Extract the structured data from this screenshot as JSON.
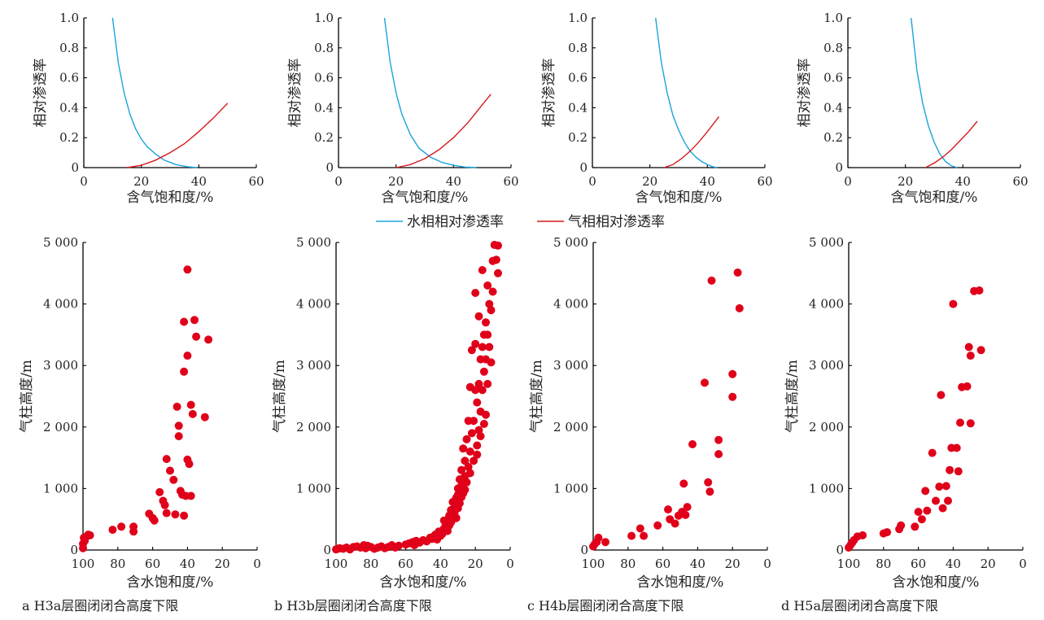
{
  "legend": {
    "water": "水相相对渗透率",
    "gas": "气相相对渗透率"
  },
  "colors": {
    "water": "#1aa3dd",
    "gas": "#d7191c",
    "points": "#e0001a"
  },
  "chart_data": [
    {
      "type": "line",
      "panel": "a-top",
      "xlabel": "含气饱和度/%",
      "ylabel": "相对渗透率",
      "xlim": [
        0,
        60
      ],
      "ylim": [
        0,
        1.0
      ],
      "xticks": [
        "0",
        "20",
        "40",
        "60"
      ],
      "yticks": [
        "0",
        "0.2",
        "0.4",
        "0.6",
        "0.8",
        "1.0"
      ],
      "series": [
        {
          "name": "水相相对渗透率",
          "x": [
            10,
            12,
            14,
            16,
            18,
            20,
            22,
            25,
            28,
            32,
            36,
            38,
            39.5
          ],
          "y": [
            1.0,
            0.7,
            0.5,
            0.36,
            0.26,
            0.19,
            0.14,
            0.09,
            0.05,
            0.02,
            0.006,
            0.002,
            0.0
          ]
        },
        {
          "name": "气相相对渗透率",
          "x": [
            15,
            20,
            25,
            30,
            35,
            40,
            45,
            50
          ],
          "y": [
            0.0,
            0.015,
            0.05,
            0.1,
            0.16,
            0.24,
            0.33,
            0.43
          ]
        }
      ]
    },
    {
      "type": "line",
      "panel": "b-top",
      "xlabel": "含气饱和度/%",
      "ylabel": "相对渗透率",
      "xlim": [
        0,
        60
      ],
      "ylim": [
        0,
        1.0
      ],
      "xticks": [
        "0",
        "20",
        "40",
        "60"
      ],
      "yticks": [
        "0",
        "0.2",
        "0.4",
        "0.6",
        "0.8",
        "1.0"
      ],
      "series": [
        {
          "name": "水相相对渗透率",
          "x": [
            16,
            18,
            20,
            22,
            25,
            28,
            32,
            36,
            40,
            44,
            48
          ],
          "y": [
            1.0,
            0.7,
            0.5,
            0.36,
            0.22,
            0.13,
            0.07,
            0.035,
            0.015,
            0.004,
            0.0
          ]
        },
        {
          "name": "气相相对渗透率",
          "x": [
            20,
            25,
            30,
            35,
            40,
            45,
            50,
            53
          ],
          "y": [
            0.0,
            0.02,
            0.06,
            0.12,
            0.2,
            0.3,
            0.42,
            0.49
          ]
        }
      ]
    },
    {
      "type": "line",
      "panel": "c-top",
      "xlabel": "含气饱和度/%",
      "ylabel": "相对渗透率",
      "xlim": [
        0,
        60
      ],
      "ylim": [
        0,
        1.0
      ],
      "xticks": [
        "0",
        "20",
        "40",
        "60"
      ],
      "yticks": [
        "0",
        "0.2",
        "0.4",
        "0.6",
        "0.8",
        "1.0"
      ],
      "series": [
        {
          "name": "水相相对渗透率",
          "x": [
            22,
            24,
            26,
            28,
            30,
            32,
            34,
            36,
            38,
            40,
            42,
            43.5
          ],
          "y": [
            1.0,
            0.7,
            0.5,
            0.35,
            0.25,
            0.17,
            0.11,
            0.07,
            0.04,
            0.02,
            0.005,
            0.0
          ]
        },
        {
          "name": "气相相对渗透率",
          "x": [
            25,
            28,
            31,
            34,
            37,
            40,
            42,
            44
          ],
          "y": [
            0.0,
            0.02,
            0.06,
            0.11,
            0.17,
            0.24,
            0.29,
            0.34
          ]
        }
      ]
    },
    {
      "type": "line",
      "panel": "d-top",
      "xlabel": "含气饱和度/%",
      "ylabel": "相对渗透率",
      "xlim": [
        0,
        60
      ],
      "ylim": [
        0,
        1.0
      ],
      "xticks": [
        "0",
        "20",
        "40",
        "60"
      ],
      "yticks": [
        "0",
        "0.2",
        "0.4",
        "0.6",
        "0.8",
        "1.0"
      ],
      "series": [
        {
          "name": "水相相对渗透率",
          "x": [
            22,
            24,
            26,
            28,
            30,
            32,
            34,
            36,
            38
          ],
          "y": [
            1.0,
            0.65,
            0.43,
            0.28,
            0.17,
            0.09,
            0.04,
            0.012,
            0.0
          ]
        },
        {
          "name": "气相相对渗透率",
          "x": [
            27,
            30,
            33,
            36,
            39,
            42,
            45
          ],
          "y": [
            0.0,
            0.03,
            0.07,
            0.12,
            0.18,
            0.24,
            0.31
          ]
        }
      ]
    },
    {
      "type": "scatter",
      "panel": "a-bottom",
      "caption": "a H3a层圈闭闭合高度下限",
      "xlabel": "含水饱和度/%",
      "ylabel": "气柱高度/m",
      "xlim": [
        100,
        0
      ],
      "ylim": [
        0,
        5000
      ],
      "xticks": [
        "100",
        "80",
        "60",
        "40",
        "20",
        "0"
      ],
      "yticks": [
        "0",
        "1 000",
        "2 000",
        "3 000",
        "4 000",
        "5 000"
      ],
      "x": [
        100,
        100,
        99.5,
        99,
        98,
        97,
        96,
        83,
        78,
        71,
        71,
        62,
        60,
        59,
        56,
        54,
        53,
        52,
        52,
        50,
        48,
        47,
        46,
        45,
        45,
        44,
        43,
        42,
        42,
        42,
        41,
        40,
        40,
        40,
        39,
        38,
        38,
        37,
        36,
        35,
        30,
        28
      ],
      "y": [
        30,
        100,
        200,
        150,
        220,
        250,
        240,
        330,
        380,
        300,
        380,
        590,
        520,
        480,
        940,
        800,
        730,
        600,
        1480,
        1290,
        1140,
        580,
        2330,
        2020,
        1850,
        960,
        900,
        560,
        2900,
        3710,
        880,
        4560,
        3160,
        1470,
        1400,
        2360,
        880,
        2210,
        3740,
        3470,
        2160,
        3420
      ]
    },
    {
      "type": "scatter",
      "panel": "b-bottom",
      "caption": "b H3b层圈闭闭合高度下限",
      "xlabel": "含水饱和度/%",
      "ylabel": "气柱高度/m",
      "xlim": [
        100,
        0
      ],
      "ylim": [
        0,
        5000
      ],
      "xticks": [
        "100",
        "80",
        "60",
        "40",
        "20",
        "0"
      ],
      "yticks": [
        "0",
        "1 000",
        "2 000",
        "3 000",
        "4 000",
        "5 000"
      ],
      "x": [
        100,
        99,
        98,
        96,
        94,
        92,
        90,
        88,
        86,
        84,
        83,
        82,
        80,
        78,
        76,
        74,
        72,
        70,
        68,
        66,
        64,
        60,
        58,
        56,
        55,
        54,
        52,
        50,
        48,
        46,
        45,
        44,
        43,
        42,
        41,
        40,
        39,
        38,
        38,
        37,
        36,
        35,
        35,
        34,
        34,
        33,
        33,
        32,
        32,
        31,
        31,
        30,
        30,
        30,
        29,
        29,
        28,
        28,
        28,
        27,
        27,
        26,
        26,
        26,
        25,
        25,
        24,
        24,
        23,
        23,
        23,
        22,
        22,
        21,
        21,
        20,
        20,
        20,
        19,
        19,
        19,
        18,
        18,
        18,
        17,
        17,
        17,
        16,
        16,
        16,
        15,
        15,
        15,
        14,
        14,
        14,
        13,
        13,
        13,
        12,
        12,
        11,
        11,
        10,
        10,
        9,
        8,
        7,
        7
      ],
      "y": [
        10,
        20,
        30,
        20,
        40,
        10,
        50,
        60,
        40,
        80,
        30,
        70,
        50,
        20,
        40,
        60,
        30,
        50,
        80,
        40,
        70,
        90,
        110,
        130,
        80,
        150,
        120,
        160,
        140,
        200,
        180,
        220,
        250,
        170,
        300,
        230,
        260,
        480,
        350,
        420,
        310,
        560,
        400,
        650,
        450,
        780,
        500,
        700,
        600,
        850,
        520,
        1000,
        900,
        680,
        1150,
        760,
        1300,
        1050,
        860,
        1650,
        920,
        1450,
        1200,
        980,
        1800,
        1100,
        2100,
        1350,
        2650,
        1600,
        1250,
        3250,
        1900,
        2100,
        1450,
        4180,
        3350,
        2600,
        2400,
        1700,
        1550,
        3800,
        2700,
        1950,
        3100,
        2250,
        1850,
        4550,
        3300,
        2600,
        3500,
        2900,
        2050,
        3700,
        3100,
        2200,
        4300,
        3500,
        2700,
        4000,
        3300,
        3900,
        3050,
        4700,
        4200,
        4960,
        4720,
        4500,
        4950
      ]
    },
    {
      "type": "scatter",
      "panel": "c-bottom",
      "caption": "c H4b层圈闭闭合高度下限",
      "xlabel": "含水饱和度/%",
      "ylabel": "气柱高度/m",
      "xlim": [
        100,
        0
      ],
      "ylim": [
        0,
        5000
      ],
      "xticks": [
        "100",
        "80",
        "60",
        "40",
        "20",
        "0"
      ],
      "yticks": [
        "0",
        "1 000",
        "2 000",
        "3 000",
        "4 000",
        "5 000"
      ],
      "x": [
        100,
        99,
        98,
        97,
        93,
        78,
        73,
        71,
        63,
        57,
        56,
        53,
        51,
        49,
        48,
        47,
        46,
        43,
        36,
        34,
        33,
        32,
        28,
        28,
        20,
        20,
        17,
        16
      ],
      "y": [
        60,
        100,
        130,
        200,
        130,
        230,
        350,
        230,
        400,
        660,
        500,
        430,
        560,
        620,
        1080,
        570,
        700,
        1720,
        2720,
        1100,
        950,
        4380,
        1790,
        1560,
        2860,
        2490,
        4510,
        3930
      ]
    },
    {
      "type": "scatter",
      "panel": "d-bottom",
      "caption": "d H5a层圈闭闭合高度下限",
      "xlabel": "含水饱和度/%",
      "ylabel": "气柱高度/m",
      "xlim": [
        100,
        0
      ],
      "ylim": [
        0,
        5000
      ],
      "xticks": [
        "100",
        "80",
        "60",
        "40",
        "20",
        "0"
      ],
      "yticks": [
        "0",
        "1 000",
        "2 000",
        "3 000",
        "4 000",
        "5 000"
      ],
      "x": [
        100,
        99,
        98,
        97,
        95,
        92,
        80,
        78,
        71,
        70,
        62,
        60,
        58,
        56,
        55,
        52,
        50,
        48,
        47,
        46,
        44,
        43,
        42,
        41,
        40,
        38,
        37,
        36,
        35,
        32,
        31,
        30,
        30,
        28,
        25,
        24
      ],
      "y": [
        40,
        80,
        120,
        160,
        220,
        240,
        270,
        290,
        340,
        400,
        380,
        620,
        500,
        960,
        640,
        1580,
        800,
        1030,
        2520,
        680,
        1040,
        800,
        1300,
        1660,
        4000,
        1660,
        1280,
        2070,
        2650,
        2660,
        3300,
        2060,
        3160,
        4210,
        4220,
        3250
      ]
    }
  ]
}
